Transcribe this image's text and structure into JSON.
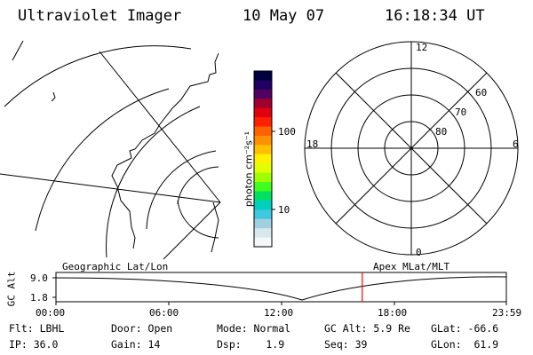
{
  "header": {
    "instrument": "Ultraviolet Imager",
    "date": "10 May 07",
    "time": "16:18:34 UT"
  },
  "colorbar": {
    "unit_label": "photon cm⁻²s⁻¹",
    "tick_100": "100",
    "tick_10": "10",
    "colors": [
      "#000040",
      "#200060",
      "#500060",
      "#a00030",
      "#e00010",
      "#ff2000",
      "#ff6000",
      "#ff9000",
      "#ffc000",
      "#fff000",
      "#e0ff00",
      "#a0ff00",
      "#40ff20",
      "#00e060",
      "#00d0c0",
      "#40c8e0",
      "#a0d0e0",
      "#d8e8ee",
      "#f4f8f8"
    ]
  },
  "polar_plot": {
    "label_top": "12",
    "label_left": "18",
    "label_right": "6",
    "label_bottom": "0",
    "ring_60": "60",
    "ring_70": "70",
    "ring_80": "80"
  },
  "strip": {
    "left_title": "Geographic Lat/Lon",
    "right_title": "Apex MLat/MLT",
    "axis_title": "GC Alt",
    "y_top": "9.0",
    "y_bottom": "1.8",
    "x_ticks": [
      "00:00",
      "06:00",
      "12:00",
      "18:00",
      "23:59"
    ],
    "marker_color": "#ff0000",
    "marker_fraction": 0.68
  },
  "info": {
    "filter": "Flt: LBHL",
    "ip": "IP: 36.0",
    "door": "Door: Open",
    "gain": "Gain: 14",
    "mode": "Mode: Normal",
    "dsp": "Dsp:    1.9",
    "gc_alt": "GC Alt: 5.9 Re",
    "seq": "Seq: 39",
    "glat": "GLat: -66.6",
    "glon": "GLon:  61.9"
  }
}
